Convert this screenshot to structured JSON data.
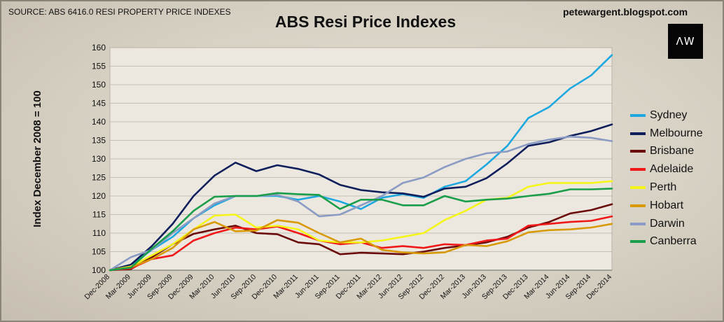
{
  "source_note": "SOURCE: ABS 6416.0 RESI PROPERTY PRICE INDEXES",
  "blog": "petewargent.blogspot.com",
  "logo_text": "ΛW",
  "chart_data": {
    "type": "line",
    "title": "ABS Resi Price Indexes",
    "xlabel": "",
    "ylabel": "Index December 2008 = 100",
    "ylim": [
      100,
      160
    ],
    "yticks": [
      100,
      105,
      110,
      115,
      120,
      125,
      130,
      135,
      140,
      145,
      150,
      155,
      160
    ],
    "grid": true,
    "legend_position": "right",
    "categories": [
      "Dec-2008",
      "Mar-2009",
      "Jun-2009",
      "Sep-2009",
      "Dec-2009",
      "Mar-2010",
      "Jun-2010",
      "Sep-2010",
      "Dec-2010",
      "Mar-2011",
      "Jun-2011",
      "Sep-2011",
      "Dec-2011",
      "Mar-2012",
      "Jun-2012",
      "Sep-2012",
      "Dec-2012",
      "Mar-2013",
      "Jun-2013",
      "Sep-2013",
      "Dec-2013",
      "Mar-2014",
      "Jun-2014",
      "Sep-2014",
      "Dec-2014"
    ],
    "series": [
      {
        "name": "Sydney",
        "color": "#1ea8e0",
        "values": [
          100,
          101.5,
          105.5,
          109,
          114,
          117.5,
          120,
          120,
          120,
          119,
          120,
          118.5,
          116.5,
          119.5,
          120.5,
          119.5,
          122.5,
          124,
          128.5,
          133.5,
          141,
          144,
          149,
          152.5,
          158
        ]
      },
      {
        "name": "Melbourne",
        "color": "#0f1f5c",
        "values": [
          100,
          101.5,
          106.5,
          112.5,
          120,
          125.5,
          129,
          126.7,
          128.3,
          127.3,
          125.8,
          123,
          121.6,
          121,
          120.7,
          119.8,
          122,
          122.5,
          124.8,
          128.8,
          133.5,
          134.5,
          136.2,
          137.5,
          139.3
        ]
      },
      {
        "name": "Brisbane",
        "color": "#6b0a0a",
        "values": [
          100,
          100.3,
          103.5,
          107,
          109.8,
          111,
          112,
          110,
          109.7,
          107.5,
          107,
          104.3,
          104.7,
          104.5,
          104.3,
          105,
          106,
          106.7,
          107.5,
          109,
          111.5,
          113,
          115.3,
          116.2,
          117.8
        ]
      },
      {
        "name": "Adelaide",
        "color": "#f01818",
        "values": [
          100,
          100.5,
          103,
          104,
          108,
          110,
          111.5,
          111,
          111.8,
          110,
          108,
          107,
          107.5,
          106,
          106.5,
          106,
          107,
          106.8,
          108,
          108.5,
          112,
          112.5,
          113,
          113.3,
          114.5
        ]
      },
      {
        "name": "Perth",
        "color": "#f5f51a",
        "values": [
          100,
          101,
          104,
          107,
          111,
          114.7,
          115,
          111.5,
          112,
          111,
          108,
          107.5,
          107.5,
          108,
          109,
          110,
          113.5,
          116,
          119,
          119.5,
          122.5,
          123.5,
          123.5,
          123.5,
          124
        ]
      },
      {
        "name": "Hobart",
        "color": "#d99a08",
        "values": [
          100,
          100.8,
          103,
          106,
          111,
          113,
          110.5,
          110.7,
          113.5,
          112.8,
          110,
          107.5,
          108.5,
          105.5,
          104.8,
          104.5,
          104.8,
          106.8,
          106.5,
          107.8,
          110.2,
          110.8,
          111,
          111.5,
          112.5
        ]
      },
      {
        "name": "Darwin",
        "color": "#8a9bc4",
        "values": [
          100,
          103.5,
          105.5,
          110,
          114,
          118,
          120,
          120,
          120.3,
          118.5,
          114.5,
          115,
          117.5,
          120,
          123.5,
          125,
          127.8,
          130,
          131.5,
          132,
          134,
          135.2,
          136,
          135.7,
          134.8
        ]
      },
      {
        "name": "Canberra",
        "color": "#1a9e4a",
        "values": [
          100,
          100.7,
          105.8,
          110.5,
          116,
          119.8,
          120,
          120,
          120.8,
          120.5,
          120.3,
          116.5,
          119,
          119,
          117.5,
          117.5,
          120,
          118.5,
          119,
          119.3,
          120,
          120.6,
          121.8,
          121.8,
          122
        ]
      }
    ]
  }
}
